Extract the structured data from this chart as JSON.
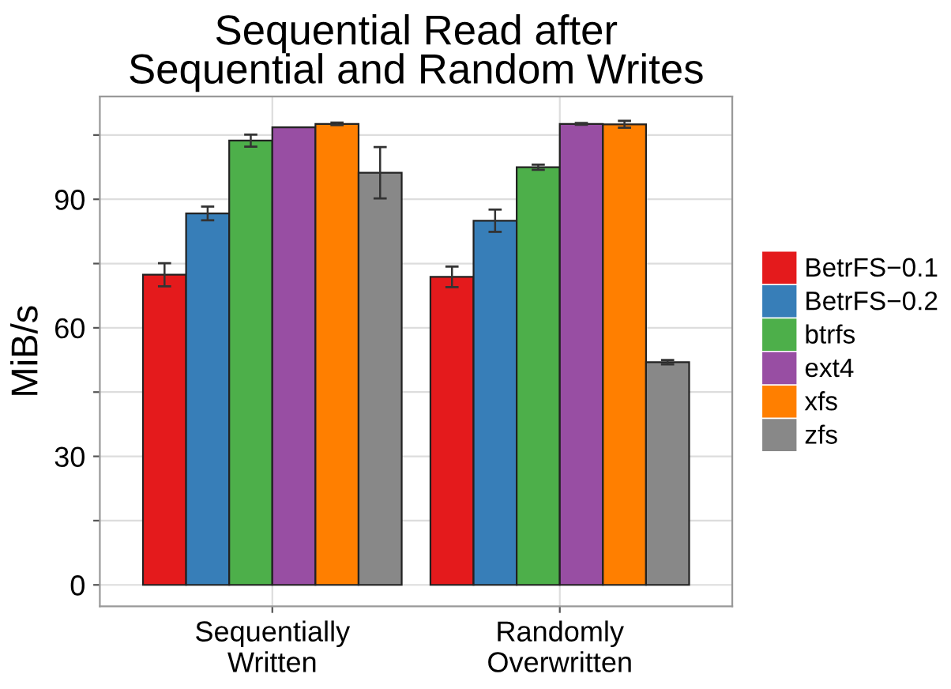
{
  "chart_data": {
    "type": "bar",
    "title": "Sequential Read after\nSequential and Random Writes",
    "ylabel": "MiB/s",
    "categories": [
      "Sequentially\nWritten",
      "Randomly\nOverwritten"
    ],
    "series": [
      {
        "name": "BetrFS−0.1",
        "color": "#e41a1c",
        "values": [
          72.4,
          71.9
        ],
        "errors": [
          2.7,
          2.4
        ]
      },
      {
        "name": "BetrFS−0.2",
        "color": "#377eb8",
        "values": [
          86.7,
          85.0
        ],
        "errors": [
          1.6,
          2.6
        ]
      },
      {
        "name": "btrfs",
        "color": "#4daf4a",
        "values": [
          103.7,
          97.5
        ],
        "errors": [
          1.4,
          0.6
        ]
      },
      {
        "name": "ext4",
        "color": "#984ea3",
        "values": [
          106.8,
          107.6
        ],
        "errors": [
          null,
          0.2
        ]
      },
      {
        "name": "xfs",
        "color": "#ff7f00",
        "values": [
          107.6,
          107.5
        ],
        "errors": [
          0.3,
          0.8
        ]
      },
      {
        "name": "zfs",
        "color": "#888888",
        "values": [
          96.2,
          52.0
        ],
        "errors": [
          6.0,
          0.5
        ]
      }
    ],
    "ylim": [
      -5,
      114
    ],
    "yticks": [
      0,
      {
        "value": 15,
        "label": null
      },
      30,
      {
        "value": 45,
        "label": null
      },
      60,
      {
        "value": 75,
        "label": null
      },
      90,
      {
        "value": 105,
        "label": null
      }
    ],
    "grid": true,
    "legend": "right"
  }
}
